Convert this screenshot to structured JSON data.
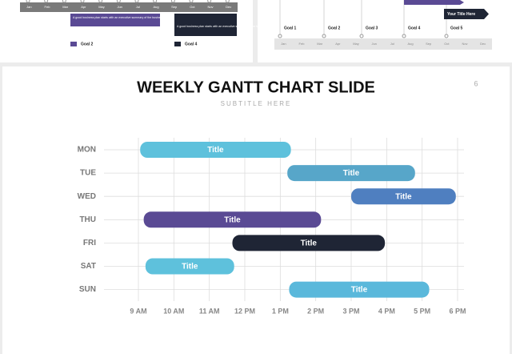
{
  "thumbnails": {
    "left": {
      "months": [
        "Jan",
        "Feb",
        "Mar",
        "Apr",
        "May",
        "Jun",
        "Jul",
        "Aug",
        "Sep",
        "Oct",
        "Nov",
        "Dec"
      ],
      "notes": [
        "A good business plan starts with an executive summary of the business goals",
        "A good business plan starts with an executive summary of the business goals"
      ],
      "goals": [
        "Goal 2",
        "Goal 4"
      ]
    },
    "right": {
      "months": [
        "Jan",
        "Feb",
        "Mar",
        "Apr",
        "May",
        "Jun",
        "Jul",
        "Aug",
        "Sep",
        "Oct",
        "Nov",
        "Dec"
      ],
      "goals": [
        "Goal 1",
        "Goal 2",
        "Goal 3",
        "Goal 4",
        "Goal 5"
      ],
      "flag": "Your Title Here"
    }
  },
  "page_number": "6",
  "chart_data": {
    "type": "gantt",
    "title": "WEEKLY GANTT CHART SLIDE",
    "subtitle": "SUBTITLE HERE",
    "categories": [
      "MON",
      "TUE",
      "WED",
      "THU",
      "FRI",
      "SAT",
      "SUN"
    ],
    "tasks": [
      {
        "category": "MON",
        "label": "Title",
        "start": 9.05,
        "end": 13.3,
        "color": "#5ec1dc"
      },
      {
        "category": "TUE",
        "label": "Title",
        "start": 13.2,
        "end": 16.8,
        "color": "#57a6c9"
      },
      {
        "category": "WED",
        "label": "Title",
        "start": 15.0,
        "end": 17.95,
        "color": "#4f7fc0"
      },
      {
        "category": "THU",
        "label": "Title",
        "start": 9.15,
        "end": 14.15,
        "color": "#5a4a94"
      },
      {
        "category": "FRI",
        "label": "Title",
        "start": 11.65,
        "end": 15.95,
        "color": "#1f2535"
      },
      {
        "category": "SAT",
        "label": "Title",
        "start": 9.2,
        "end": 11.7,
        "color": "#5ec1dc"
      },
      {
        "category": "SUN",
        "label": "Title",
        "start": 13.25,
        "end": 17.2,
        "color": "#5ab8db"
      }
    ],
    "xlim": [
      9,
      18
    ],
    "xticks": [
      {
        "value": 9,
        "label": "9 AM"
      },
      {
        "value": 10,
        "label": "10 AM"
      },
      {
        "value": 11,
        "label": "11 AM"
      },
      {
        "value": 12,
        "label": "12 PM"
      },
      {
        "value": 13,
        "label": "1 PM"
      },
      {
        "value": 14,
        "label": "2 PM"
      },
      {
        "value": 15,
        "label": "3 PM"
      },
      {
        "value": 16,
        "label": "4 PM"
      },
      {
        "value": 17,
        "label": "5 PM"
      },
      {
        "value": 18,
        "label": "6 PM"
      }
    ],
    "grid": true
  }
}
